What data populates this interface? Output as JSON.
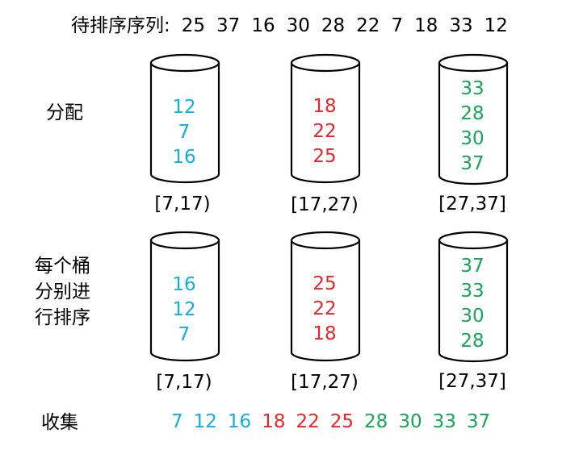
{
  "colors": {
    "blue": "#12aee0",
    "red": "#e8262b",
    "green": "#17a556",
    "black": "#000000"
  },
  "title": {
    "label": "待排序序列:",
    "sequence": [
      "25",
      "37",
      "16",
      "30",
      "28",
      "22",
      "7",
      "18",
      "33",
      "12"
    ]
  },
  "labels": {
    "distribute": "分配",
    "sort_each_lines": [
      "每个桶",
      "分别进",
      "行排序"
    ],
    "collect": "收集"
  },
  "ranges": [
    "[7,17)",
    "[17,27)",
    "[27,37]"
  ],
  "distribute_buckets": [
    {
      "values": [
        "12",
        "7",
        "16"
      ],
      "color": "blue"
    },
    {
      "values": [
        "18",
        "22",
        "25"
      ],
      "color": "red"
    },
    {
      "values": [
        "33",
        "28",
        "30",
        "37"
      ],
      "color": "green"
    }
  ],
  "sorted_buckets": [
    {
      "values": [
        "16",
        "12",
        "7"
      ],
      "color": "blue"
    },
    {
      "values": [
        "25",
        "22",
        "18"
      ],
      "color": "red"
    },
    {
      "values": [
        "37",
        "33",
        "30",
        "28"
      ],
      "color": "green"
    }
  ],
  "collected": [
    {
      "value": "7",
      "color": "blue"
    },
    {
      "value": "12",
      "color": "blue"
    },
    {
      "value": "16",
      "color": "blue"
    },
    {
      "value": "18",
      "color": "red"
    },
    {
      "value": "22",
      "color": "red"
    },
    {
      "value": "25",
      "color": "red"
    },
    {
      "value": "28",
      "color": "green"
    },
    {
      "value": "30",
      "color": "green"
    },
    {
      "value": "33",
      "color": "green"
    },
    {
      "value": "37",
      "color": "green"
    }
  ]
}
